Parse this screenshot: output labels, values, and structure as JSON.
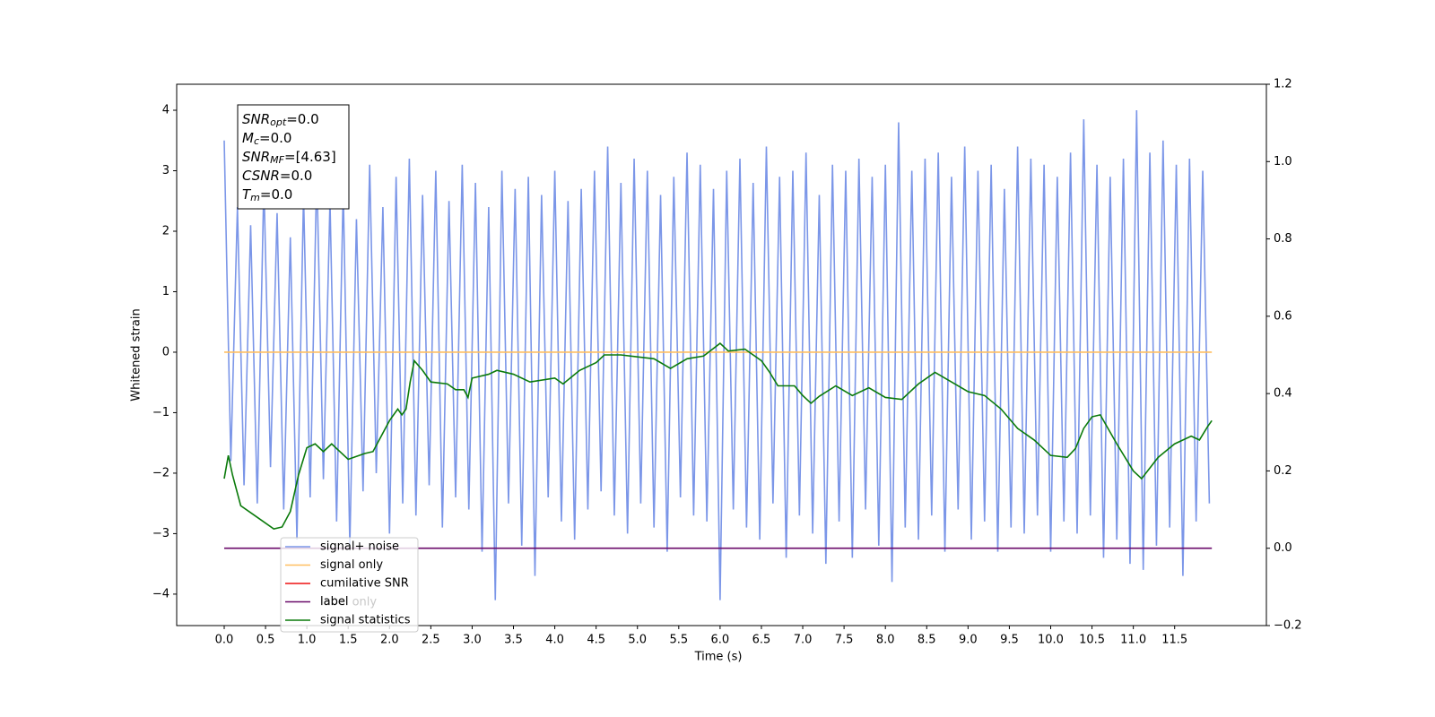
{
  "chart_data": {
    "type": "line",
    "xlabel": "Time (s)",
    "ylabel": "Whitened strain",
    "xlim": [
      -0.575,
      12.61
    ],
    "ylim": [
      -4.52,
      4.43
    ],
    "y2lim": [
      -0.2,
      1.2
    ],
    "xticks": [
      {
        "value": 0,
        "label": "0.0"
      },
      0.5,
      {
        "value": 1,
        "label": "1.0"
      },
      1.5,
      {
        "value": 2,
        "label": "2.0"
      },
      2.5,
      {
        "value": 3,
        "label": "3.0"
      },
      3.5,
      {
        "value": 4,
        "label": "4.0"
      },
      4.5,
      {
        "value": 5,
        "label": "5.0"
      },
      5.5,
      {
        "value": 6,
        "label": "6.0"
      },
      6.5,
      {
        "value": 7,
        "label": "7.0"
      },
      7.5,
      {
        "value": 8,
        "label": "8.0"
      },
      8.5,
      {
        "value": 9,
        "label": "9.0"
      },
      9.5,
      {
        "value": 10,
        "label": "10.0"
      },
      10.5,
      {
        "value": 11,
        "label": "11.0"
      },
      11.5
    ],
    "yticks": [
      {
        "value": -4,
        "label": "−4"
      },
      {
        "value": -3,
        "label": "−3"
      },
      {
        "value": -2,
        "label": "−2"
      },
      {
        "value": -1,
        "label": "−1"
      },
      0,
      1,
      2,
      3,
      4
    ],
    "y2ticks": [
      {
        "value": -0.2,
        "label": "−0.2"
      },
      {
        "value": 0,
        "label": "0.0"
      },
      0.2,
      0.4,
      0.6,
      0.8,
      {
        "value": 1,
        "label": "1.0"
      },
      1.2
    ],
    "legend": "lower left",
    "series": [
      {
        "name": "signal+ noise",
        "color": "#7b96e8",
        "x": [
          0,
          0.08,
          0.16,
          0.24,
          0.32,
          0.4,
          0.48,
          0.56,
          0.64,
          0.72,
          0.8,
          0.88,
          0.96,
          1.04,
          1.12,
          1.2,
          1.28,
          1.36,
          1.44,
          1.52,
          1.6,
          1.68,
          1.76,
          1.84,
          1.92,
          2,
          2.08,
          2.16,
          2.24,
          2.32,
          2.4,
          2.48,
          2.56,
          2.64,
          2.72,
          2.8,
          2.88,
          2.96,
          3.04,
          3.12,
          3.2,
          3.28,
          3.36,
          3.44,
          3.52,
          3.6,
          3.68,
          3.76,
          3.84,
          3.92,
          4,
          4.08,
          4.16,
          4.24,
          4.32,
          4.4,
          4.48,
          4.56,
          4.64,
          4.72,
          4.8,
          4.88,
          4.96,
          5.04,
          5.12,
          5.2,
          5.28,
          5.36,
          5.44,
          5.52,
          5.6,
          5.68,
          5.76,
          5.84,
          5.92,
          6,
          6.08,
          6.16,
          6.24,
          6.32,
          6.4,
          6.48,
          6.56,
          6.64,
          6.72,
          6.8,
          6.88,
          6.96,
          7.04,
          7.12,
          7.2,
          7.28,
          7.36,
          7.44,
          7.52,
          7.6,
          7.68,
          7.76,
          7.84,
          7.92,
          8,
          8.08,
          8.16,
          8.24,
          8.32,
          8.4,
          8.48,
          8.56,
          8.64,
          8.72,
          8.8,
          8.88,
          8.96,
          9.04,
          9.12,
          9.2,
          9.28,
          9.36,
          9.44,
          9.52,
          9.6,
          9.68,
          9.76,
          9.84,
          9.92,
          10,
          10.08,
          10.16,
          10.24,
          10.32,
          10.4,
          10.48,
          10.56,
          10.64,
          10.72,
          10.8,
          10.88,
          10.96,
          11.04,
          11.12,
          11.2,
          11.28,
          11.36,
          11.44,
          11.52,
          11.6,
          11.68,
          11.76,
          11.84,
          11.92
        ],
        "values": [
          3.5,
          -1.8,
          2.4,
          -2.2,
          2.1,
          -2.5,
          2.8,
          -1.9,
          2.3,
          -2.6,
          1.9,
          -3.1,
          2.6,
          -2.4,
          3.0,
          -2.1,
          2.5,
          -2.8,
          2.7,
          -3.2,
          2.2,
          -2.3,
          3.1,
          -2.0,
          2.4,
          -3.0,
          2.9,
          -2.5,
          3.2,
          -2.7,
          2.6,
          -2.2,
          3.0,
          -2.9,
          2.5,
          -2.4,
          3.1,
          -2.6,
          2.8,
          -3.3,
          2.4,
          -4.1,
          3.0,
          -2.5,
          2.7,
          -3.2,
          2.9,
          -3.7,
          2.6,
          -2.4,
          3.0,
          -2.8,
          2.5,
          -3.1,
          2.7,
          -2.6,
          3.0,
          -2.3,
          3.4,
          -2.7,
          2.8,
          -3.0,
          3.2,
          -2.5,
          3.0,
          -2.9,
          2.6,
          -3.3,
          2.9,
          -2.4,
          3.3,
          -2.7,
          3.1,
          -2.8,
          2.7,
          -4.1,
          3.0,
          -2.6,
          3.2,
          -2.9,
          2.8,
          -3.1,
          3.4,
          -2.5,
          2.9,
          -3.4,
          3.0,
          -2.7,
          3.3,
          -3.0,
          2.6,
          -3.5,
          3.1,
          -2.8,
          3.0,
          -3.4,
          3.2,
          -2.6,
          2.9,
          -3.2,
          3.1,
          -3.8,
          3.8,
          -2.9,
          3.0,
          -3.1,
          3.2,
          -2.7,
          3.3,
          -3.3,
          2.9,
          -2.6,
          3.4,
          -3.1,
          3.0,
          -2.8,
          3.1,
          -3.3,
          2.7,
          -2.9,
          3.4,
          -3.0,
          3.2,
          -2.7,
          3.1,
          -3.3,
          2.9,
          -2.8,
          3.3,
          -3.0,
          3.85,
          -2.7,
          3.1,
          -3.4,
          2.9,
          -3.1,
          3.2,
          -3.5,
          4.0,
          -3.6,
          3.3,
          -3.2,
          3.5,
          -2.9,
          3.1,
          -3.7,
          3.2,
          -2.8,
          3.0,
          -2.5
        ]
      },
      {
        "name": "signal only",
        "color": "#ffbf60",
        "x": [
          0,
          11.95
        ],
        "values": [
          0,
          0
        ]
      },
      {
        "name": "cumilative SNR",
        "color": "#ee1111",
        "x": [],
        "values": []
      },
      {
        "name": "label",
        "color": "#6a0a6a",
        "axis": "y2",
        "x": [
          0,
          11.95
        ],
        "values": [
          0,
          0
        ]
      },
      {
        "name": "signal statistics",
        "color": "#0a7a0a",
        "axis": "y2",
        "x": [
          0,
          0.05,
          0.1,
          0.2,
          0.4,
          0.6,
          0.7,
          0.8,
          0.9,
          1.0,
          1.1,
          1.2,
          1.3,
          1.5,
          1.7,
          1.8,
          1.9,
          2.0,
          2.1,
          2.15,
          2.2,
          2.25,
          2.3,
          2.4,
          2.5,
          2.7,
          2.8,
          2.9,
          2.95,
          3.0,
          3.2,
          3.3,
          3.5,
          3.7,
          4.0,
          4.1,
          4.3,
          4.5,
          4.6,
          4.8,
          5.0,
          5.2,
          5.4,
          5.6,
          5.8,
          6.0,
          6.1,
          6.3,
          6.5,
          6.6,
          6.7,
          6.9,
          7.0,
          7.1,
          7.2,
          7.4,
          7.6,
          7.8,
          8.0,
          8.2,
          8.4,
          8.6,
          8.8,
          9.0,
          9.2,
          9.4,
          9.6,
          9.8,
          10.0,
          10.2,
          10.3,
          10.4,
          10.5,
          10.6,
          10.8,
          11.0,
          11.1,
          11.3,
          11.5,
          11.7,
          11.8,
          11.9,
          11.95
        ],
        "values": [
          0.18,
          0.24,
          0.19,
          0.11,
          0.08,
          0.05,
          0.055,
          0.095,
          0.19,
          0.26,
          0.27,
          0.25,
          0.27,
          0.23,
          0.245,
          0.25,
          0.29,
          0.33,
          0.36,
          0.345,
          0.36,
          0.43,
          0.485,
          0.46,
          0.43,
          0.425,
          0.41,
          0.41,
          0.39,
          0.44,
          0.45,
          0.46,
          0.45,
          0.43,
          0.44,
          0.425,
          0.46,
          0.48,
          0.5,
          0.5,
          0.495,
          0.49,
          0.465,
          0.49,
          0.497,
          0.53,
          0.51,
          0.515,
          0.485,
          0.455,
          0.42,
          0.42,
          0.395,
          0.375,
          0.393,
          0.42,
          0.395,
          0.415,
          0.39,
          0.385,
          0.425,
          0.455,
          0.43,
          0.405,
          0.395,
          0.36,
          0.31,
          0.28,
          0.24,
          0.235,
          0.258,
          0.31,
          0.34,
          0.345,
          0.27,
          0.2,
          0.18,
          0.235,
          0.27,
          0.29,
          0.28,
          0.315,
          0.33
        ]
      }
    ],
    "legend_ghost": "label only",
    "textbox": [
      {
        "main": "SNR",
        "sub": "opt",
        "rest": "=0.0"
      },
      {
        "main": "M",
        "sub": "c",
        "rest": "=0.0"
      },
      {
        "main": "SNR",
        "sub": "MF",
        "rest": "=[4.63]"
      },
      {
        "main": "CSNR",
        "rest": "=0.0"
      },
      {
        "main": "T",
        "sub": "m",
        "rest": "=0.0"
      }
    ]
  }
}
